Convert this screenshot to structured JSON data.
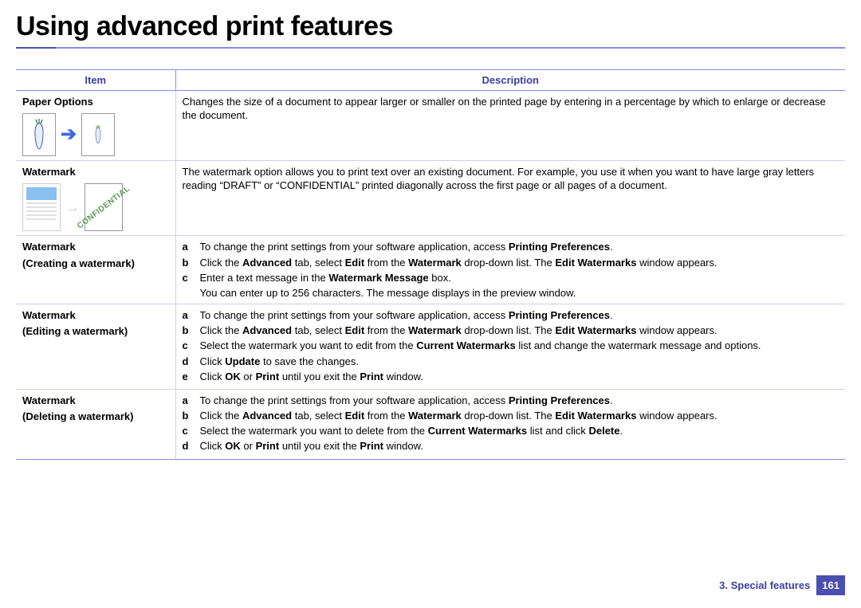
{
  "title": "Using advanced print features",
  "table": {
    "headers": {
      "item": "Item",
      "desc": "Description"
    },
    "rows": [
      {
        "item_main": "Paper Options",
        "item_sub": "",
        "desc_plain": "Changes the size of a document to appear larger or smaller on the printed page by entering in a percentage by which to enlarge or decrease the document.",
        "thumb": "scale"
      },
      {
        "item_main": "Watermark",
        "item_sub": "",
        "desc_plain": "The watermark option allows you to print text over an existing document. For example, you use it when you want to have large gray letters reading “DRAFT” or “CONFIDENTIAL” printed diagonally across the first page or all pages of a document.",
        "thumb": "wm"
      },
      {
        "item_main": "Watermark",
        "item_sub": "Creating a watermark",
        "steps": [
          {
            "l": "a",
            "h": "To change the print settings from your software application, access <b>Printing Preferences</b>."
          },
          {
            "l": "b",
            "h": "Click the <b>Advanced</b> tab, select <b>Edit</b> from the <b>Watermark</b> drop-down list. The <b>Edit Watermarks</b> window appears."
          },
          {
            "l": "c",
            "h": "Enter a text message in the <b>Watermark Message</b> box."
          }
        ],
        "note": "You can enter up to 256 characters. The message displays in the preview window."
      },
      {
        "item_main": "Watermark",
        "item_sub": "Editing a watermark",
        "steps": [
          {
            "l": "a",
            "h": "To change the print settings from your software application, access <b>Printing Preferences</b>."
          },
          {
            "l": "b",
            "h": "Click the <b>Advanced</b> tab, select <b>Edit</b> from the <b>Watermark</b> drop-down list. The <b>Edit Watermarks</b> window appears."
          },
          {
            "l": "c",
            "h": "Select the watermark you want to edit from the <b>Current Watermarks</b> list and change the watermark message and options."
          },
          {
            "l": "d",
            "h": "Click <b>Update</b> to save the changes."
          },
          {
            "l": "e",
            "h": "Click <b>OK</b> or <b>Print</b> until you exit the <b>Print</b> window."
          }
        ]
      },
      {
        "item_main": "Watermark",
        "item_sub": "Deleting a watermark",
        "steps": [
          {
            "l": "a",
            "h": "To change the print settings from your software application, access <b>Printing Preferences</b>."
          },
          {
            "l": "b",
            "h": "Click the <b>Advanced</b> tab, select <b>Edit</b> from the <b>Watermark</b> drop-down list. The <b>Edit Watermarks</b> window appears."
          },
          {
            "l": "c",
            "h": "Select the watermark you want to delete from the <b>Current Watermarks</b> list and click <b>Delete</b>."
          },
          {
            "l": "d",
            "h": "Click <b>OK</b> or <b>Print</b> until you exit the <b>Print</b> window."
          }
        ]
      }
    ]
  },
  "footer": {
    "chapter": "3.  Special features",
    "page": "161"
  },
  "colors": {
    "accent": "#4a4fb0",
    "accent_light": "#8a8ee8",
    "row_border": "#cfcfe8",
    "text": "#000000",
    "bg": "#ffffff"
  }
}
